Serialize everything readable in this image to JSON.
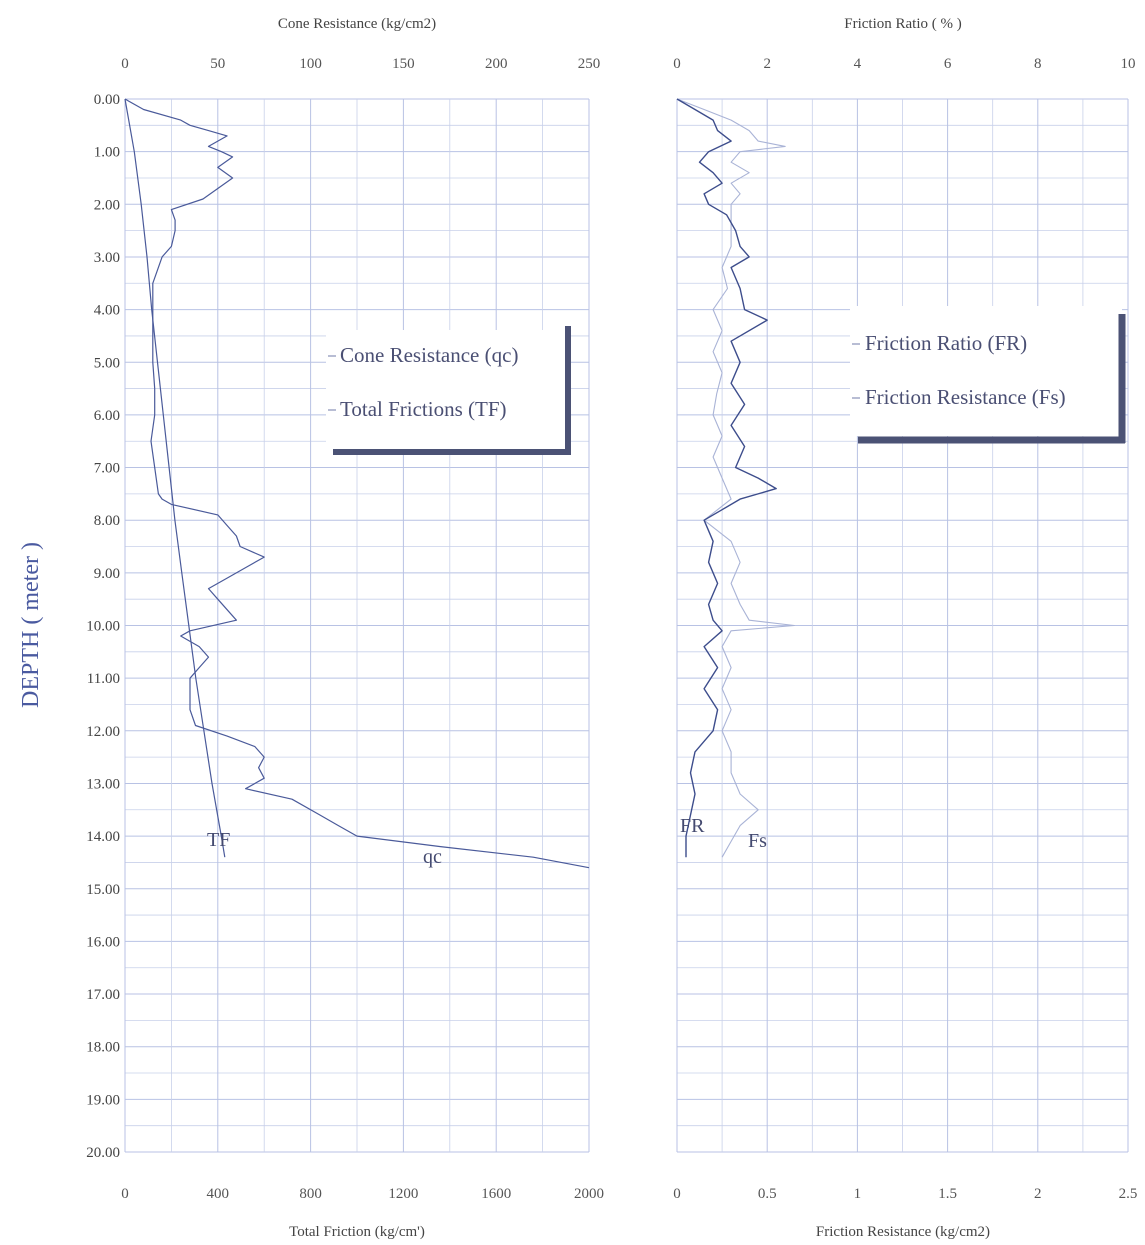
{
  "chart_data": [
    {
      "type": "line",
      "title": "Cone Resistance (kg/cm2)",
      "top_axis": {
        "label": "Cone Resistance (kg/cm2)",
        "range": [
          0,
          250
        ],
        "ticks": [
          "0",
          "50",
          "100",
          "150",
          "200",
          "250"
        ]
      },
      "bottom_axis": {
        "label": "Total Friction (kg/cm')",
        "range": [
          0,
          2000
        ],
        "ticks": [
          "0",
          "400",
          "800",
          "1200",
          "1600",
          "2000"
        ]
      },
      "y_axis": {
        "label": "DEPTH ( meter )",
        "range": [
          0,
          20
        ],
        "inverted": true,
        "ticks": [
          "0.00",
          "1.00",
          "2.00",
          "3.00",
          "4.00",
          "5.00",
          "6.00",
          "7.00",
          "8.00",
          "9.00",
          "10.00",
          "11.00",
          "12.00",
          "13.00",
          "14.00",
          "15.00",
          "16.00",
          "17.00",
          "18.00",
          "19.00",
          "20.00"
        ]
      },
      "grid": true,
      "legend": {
        "placement": "upper-right",
        "entries": [
          "Cone Resistance (qc)",
          "Total Frictions (TF)"
        ]
      },
      "curve_labels": {
        "tf": "TF",
        "qc": "qc"
      },
      "series": [
        {
          "name": "Cone Resistance (qc)",
          "axis": "top",
          "color": "#4a5a9a",
          "depth": [
            0.0,
            0.2,
            0.4,
            0.5,
            0.6,
            0.7,
            0.9,
            1.0,
            1.1,
            1.3,
            1.5,
            1.7,
            1.9,
            2.1,
            2.3,
            2.5,
            2.8,
            3.0,
            3.5,
            4.0,
            4.5,
            5.0,
            5.5,
            6.0,
            6.5,
            7.0,
            7.5,
            7.6,
            7.7,
            7.9,
            8.1,
            8.3,
            8.5,
            8.7,
            8.9,
            9.1,
            9.3,
            9.5,
            9.7,
            9.9,
            10.1,
            10.2,
            10.4,
            10.6,
            10.8,
            11.0,
            11.2,
            11.6,
            11.9,
            12.1,
            12.3,
            12.5,
            12.7,
            12.9,
            13.1,
            13.3,
            13.6,
            13.8,
            14.0,
            14.2,
            14.4,
            14.6
          ],
          "values": [
            0,
            10,
            30,
            35,
            45,
            55,
            45,
            52,
            58,
            50,
            58,
            50,
            42,
            25,
            27,
            27,
            25,
            20,
            15,
            15,
            15,
            15,
            16,
            16,
            14,
            16,
            18,
            20,
            25,
            50,
            55,
            60,
            62,
            75,
            65,
            55,
            45,
            50,
            55,
            60,
            35,
            30,
            40,
            45,
            40,
            35,
            35,
            35,
            38,
            55,
            70,
            75,
            72,
            75,
            65,
            90,
            105,
            115,
            125,
            170,
            220,
            250
          ]
        },
        {
          "name": "Total Frictions (TF)",
          "axis": "bottom",
          "color": "#4a5a9a",
          "depth": [
            0,
            1,
            2,
            3,
            4,
            5,
            6,
            7,
            8,
            9,
            10,
            11,
            12,
            13,
            14,
            14.4
          ],
          "values": [
            0,
            40,
            70,
            95,
            115,
            140,
            165,
            190,
            215,
            245,
            275,
            305,
            340,
            375,
            415,
            430
          ]
        }
      ]
    },
    {
      "type": "line",
      "title": "Friction Ratio ( % )",
      "top_axis": {
        "label": "Friction Ratio ( % )",
        "range": [
          0,
          10
        ],
        "ticks": [
          "0",
          "2",
          "4",
          "6",
          "8",
          "10"
        ]
      },
      "bottom_axis": {
        "label": "Friction Resistance (kg/cm2)",
        "range": [
          0,
          2.5
        ],
        "ticks": [
          "0",
          "0.5",
          "1",
          "1.5",
          "2",
          "2.5"
        ]
      },
      "y_axis": {
        "range": [
          0,
          20
        ],
        "inverted": true
      },
      "grid": true,
      "legend": {
        "placement": "upper-right",
        "entries": [
          "Friction Ratio (FR)",
          "Friction Resistance (Fs)"
        ]
      },
      "curve_labels": {
        "fr": "FR",
        "fs": "Fs"
      },
      "series": [
        {
          "name": "Friction Ratio (FR)",
          "axis": "top",
          "color": "#3d4d8c",
          "depth": [
            0.0,
            0.2,
            0.4,
            0.6,
            0.8,
            1.0,
            1.2,
            1.4,
            1.6,
            1.8,
            2.0,
            2.2,
            2.5,
            2.8,
            3.0,
            3.2,
            3.6,
            4.0,
            4.2,
            4.6,
            5.0,
            5.4,
            5.8,
            6.2,
            6.6,
            7.0,
            7.2,
            7.4,
            7.6,
            7.8,
            8.0,
            8.4,
            8.8,
            9.2,
            9.6,
            9.9,
            10.1,
            10.4,
            10.8,
            11.2,
            11.6,
            12.0,
            12.4,
            12.8,
            13.2,
            13.6,
            14.0,
            14.4
          ],
          "values": [
            0.0,
            0.4,
            0.8,
            0.9,
            1.2,
            0.7,
            0.5,
            0.8,
            1.0,
            0.6,
            0.7,
            1.1,
            1.3,
            1.4,
            1.6,
            1.2,
            1.4,
            1.5,
            2.0,
            1.2,
            1.4,
            1.2,
            1.5,
            1.2,
            1.5,
            1.3,
            1.8,
            2.2,
            1.4,
            1.0,
            0.6,
            0.8,
            0.7,
            0.9,
            0.7,
            0.8,
            1.0,
            0.6,
            0.9,
            0.6,
            0.9,
            0.8,
            0.4,
            0.3,
            0.4,
            0.3,
            0.2,
            0.2
          ]
        },
        {
          "name": "Friction Resistance (Fs)",
          "axis": "bottom",
          "color": "#a9b3d6",
          "depth": [
            0.0,
            0.2,
            0.4,
            0.6,
            0.8,
            0.9,
            1.0,
            1.2,
            1.4,
            1.6,
            1.8,
            2.0,
            2.4,
            2.8,
            3.2,
            3.6,
            4.0,
            4.4,
            4.8,
            5.2,
            5.6,
            6.0,
            6.4,
            6.8,
            7.2,
            7.6,
            8.0,
            8.4,
            8.8,
            9.2,
            9.6,
            9.9,
            10.0,
            10.1,
            10.4,
            10.8,
            11.2,
            11.6,
            12.0,
            12.4,
            12.8,
            13.2,
            13.5,
            13.8,
            14.1,
            14.4
          ],
          "values": [
            0.0,
            0.15,
            0.3,
            0.4,
            0.45,
            0.6,
            0.35,
            0.3,
            0.4,
            0.3,
            0.35,
            0.3,
            0.3,
            0.3,
            0.25,
            0.28,
            0.2,
            0.25,
            0.2,
            0.25,
            0.22,
            0.2,
            0.25,
            0.2,
            0.25,
            0.3,
            0.15,
            0.3,
            0.35,
            0.3,
            0.35,
            0.4,
            0.65,
            0.3,
            0.25,
            0.3,
            0.25,
            0.3,
            0.25,
            0.3,
            0.3,
            0.35,
            0.45,
            0.35,
            0.3,
            0.25
          ]
        }
      ]
    }
  ]
}
